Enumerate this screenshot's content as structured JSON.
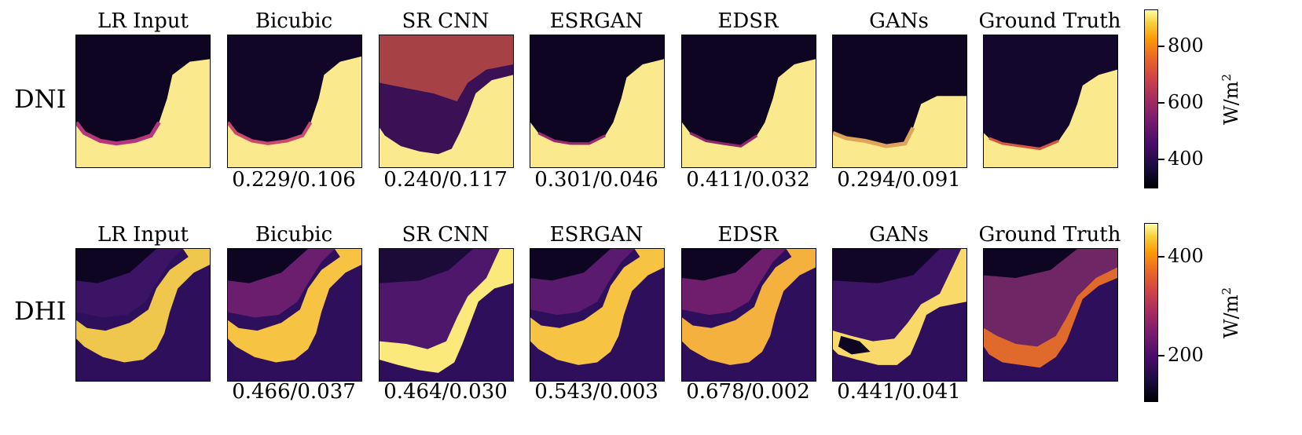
{
  "columns": [
    "LR Input",
    "Bicubic",
    "SR CNN",
    "ESRGAN",
    "EDSR",
    "GANs",
    "Ground Truth"
  ],
  "rows": [
    {
      "label": "DNI",
      "scores": [
        "",
        "0.229/0.106",
        "0.240/0.117",
        "0.301/0.046",
        "0.411/0.032",
        "0.294/0.091",
        ""
      ],
      "colorbar": {
        "unit_base": "W/m",
        "unit_exp": "2",
        "ticks": [
          "800",
          "600",
          "400"
        ],
        "min": 310,
        "max": 910
      }
    },
    {
      "label": "DHI",
      "scores": [
        "",
        "0.466/0.037",
        "0.464/0.030",
        "0.543/0.003",
        "0.678/0.002",
        "0.441/0.041",
        ""
      ],
      "colorbar": {
        "unit_base": "W/m",
        "unit_exp": "2",
        "ticks": [
          "400",
          "200"
        ],
        "min": 110,
        "max": 460
      }
    }
  ],
  "colors": {
    "colormap": "inferno",
    "dark": "#0d0521",
    "mid": "#8c2369",
    "bright": "#fbe98e"
  }
}
